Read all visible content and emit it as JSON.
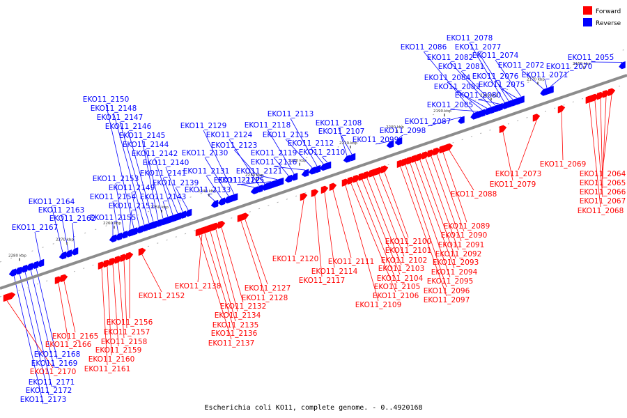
{
  "title": "Escherichia coli KO11, complete genome. - 0..4920168",
  "legend": {
    "forward_label": "Forward",
    "reverse_label": "Reverse",
    "forward_color": "#ff0000",
    "reverse_color": "#0000ff"
  },
  "ticks": [
    "2160 kbp",
    "2170 kbp",
    "2180 kbp",
    "2190 kbp",
    "2200 kbp",
    "2210 kbp",
    "2220 kbp",
    "2230 kbp",
    "2240 kbp",
    "2250 kbp",
    "2260 kbp",
    "2270 kbp",
    "2280 kbp"
  ],
  "reverse_genes": [
    "EKO11_2055",
    "EKO11_2070",
    "EKO11_2071",
    "EKO11_2072",
    "EKO11_2074",
    "EKO11_2075",
    "EKO11_2076",
    "EKO11_2077",
    "EKO11_2078",
    "EKO11_2080",
    "EKO11_2081",
    "EKO11_2082",
    "EKO11_2083",
    "EKO11_2084",
    "EKO11_2085",
    "EKO11_2086",
    "EKO11_2087",
    "EKO11_2098",
    "EKO11_2099",
    "EKO11_2107",
    "EKO11_2108",
    "EKO11_2110",
    "EKO11_2112",
    "EKO11_2113",
    "EKO11_2115",
    "EKO11_2116",
    "EKO11_2118",
    "EKO11_2119",
    "EKO11_2121",
    "EKO11_2122",
    "EKO11_2123",
    "EKO11_2124",
    "EKO11_2125",
    "EKO11_2129",
    "EKO11_2130",
    "EKO11_2131",
    "EKO11_2133",
    "EKO11_2139",
    "EKO11_2140",
    "EKO11_2141",
    "EKO11_2142",
    "EKO11_2143",
    "EKO11_2144",
    "EKO11_2145",
    "EKO11_2146",
    "EKO11_2147",
    "EKO11_2148",
    "EKO11_2149",
    "EKO11_2150",
    "EKO11_2151",
    "EKO11_2153",
    "EKO11_2154",
    "EKO11_2155",
    "EKO11_2162",
    "EKO11_2163",
    "EKO11_2164",
    "EKO11_2167",
    "EKO11_2168",
    "EKO11_2169",
    "EKO11_2171",
    "EKO11_2172",
    "EKO11_2173"
  ],
  "forward_genes": [
    "EKO11_2064",
    "EKO11_2065",
    "EKO11_2066",
    "EKO11_2067",
    "EKO11_2068",
    "EKO11_2069",
    "EKO11_2073",
    "EKO11_2079",
    "EKO11_2088",
    "EKO11_2089",
    "EKO11_2090",
    "EKO11_2091",
    "EKO11_2092",
    "EKO11_2093",
    "EKO11_2094",
    "EKO11_2095",
    "EKO11_2096",
    "EKO11_2097",
    "EKO11_2100",
    "EKO11_2101",
    "EKO11_2102",
    "EKO11_2103",
    "EKO11_2104",
    "EKO11_2105",
    "EKO11_2106",
    "EKO11_2109",
    "EKO11_2111",
    "EKO11_2114",
    "EKO11_2117",
    "EKO11_2120",
    "EKO11_2127",
    "EKO11_2128",
    "EKO11_2132",
    "EKO11_2134",
    "EKO11_2135",
    "EKO11_2136",
    "EKO11_2137",
    "EKO11_2138",
    "EKO11_2152",
    "EKO11_2156",
    "EKO11_2157",
    "EKO11_2158",
    "EKO11_2159",
    "EKO11_2160",
    "EKO11_2161",
    "EKO11_2165",
    "EKO11_2166",
    "EKO11_2170"
  ]
}
